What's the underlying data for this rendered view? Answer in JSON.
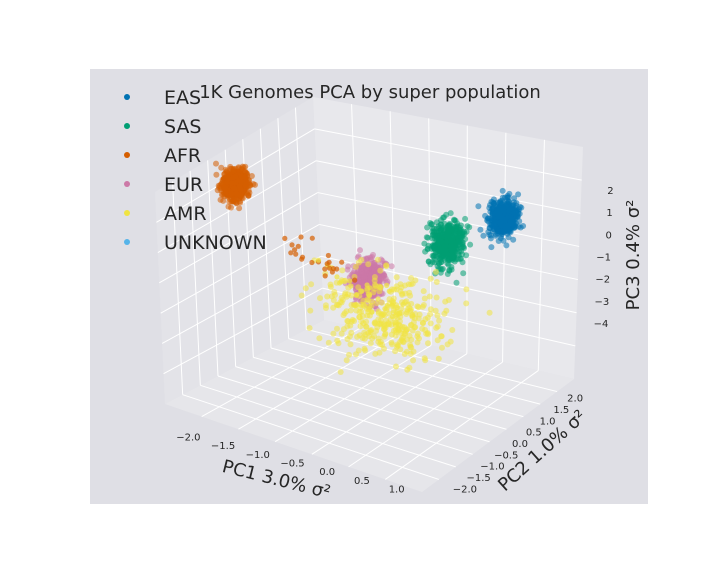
{
  "chart_data": {
    "type": "scatter",
    "dimensions": 3,
    "title": "1K Genomes PCA by super population",
    "xlabel": "PC1 3.0% σ²",
    "ylabel": "PC2 1.0% σ²",
    "zlabel": "PC3 0.4% σ²",
    "x_ticks": [
      "−2.0",
      "−1.5",
      "−1.0",
      "−0.5",
      "0.0",
      "0.5",
      "1.0"
    ],
    "y_ticks": [
      "−2.0",
      "−1.5",
      "−1.0",
      "−0.5",
      "0.0",
      "0.5",
      "1.0",
      "1.5",
      "2.0"
    ],
    "z_ticks": [
      "−4",
      "−3",
      "−2",
      "−1",
      "0",
      "1",
      "2"
    ],
    "xlim": [
      -2.2,
      1.1
    ],
    "ylim": [
      -2.3,
      2.3
    ],
    "zlim": [
      -4.5,
      2.6
    ],
    "grid": true,
    "legend_placement": "upper-left",
    "series": [
      {
        "name": "EAS",
        "color": "#0072b2",
        "center": [
          0.93,
          0.55,
          1.6
        ],
        "spread": [
          0.07,
          0.12,
          0.25
        ],
        "count": 500
      },
      {
        "name": "SAS",
        "color": "#009e73",
        "center": [
          0.52,
          -0.12,
          1.05
        ],
        "spread": [
          0.08,
          0.14,
          0.32
        ],
        "count": 480
      },
      {
        "name": "AFR",
        "color": "#d55e00",
        "center": [
          -2.05,
          -0.35,
          1.6
        ],
        "spread": [
          0.06,
          0.12,
          0.22
        ],
        "count": 650
      },
      {
        "name": "EUR",
        "color": "#cc79a7",
        "center": [
          0.12,
          -1.45,
          0.65
        ],
        "spread": [
          0.07,
          0.14,
          0.28
        ],
        "count": 500
      },
      {
        "name": "AMR",
        "color": "#f0e442",
        "center": [
          0.35,
          -1.55,
          -0.25
        ],
        "spread": [
          0.35,
          0.35,
          0.6
        ],
        "count": 350
      },
      {
        "name": "UNKNOWN",
        "color": "#56b4e9",
        "center": [
          0,
          0,
          0
        ],
        "spread": [
          0,
          0,
          0
        ],
        "count": 0
      }
    ]
  }
}
